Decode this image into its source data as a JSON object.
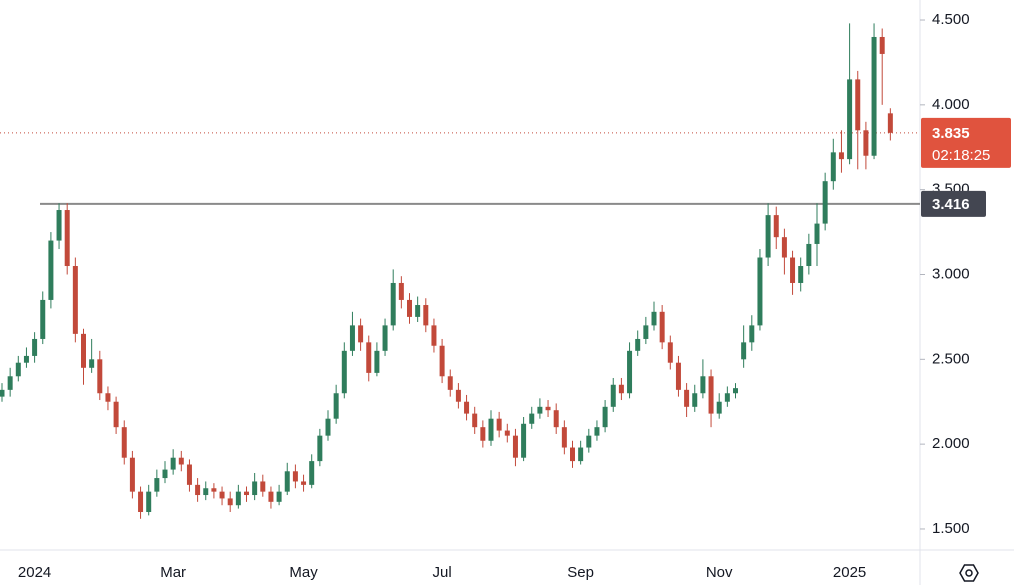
{
  "chart_data": {
    "type": "candlestick",
    "categories": [
      null,
      null,
      null,
      null,
      "2024",
      null,
      null,
      null,
      null,
      null,
      null,
      null,
      null,
      null,
      null,
      null,
      null,
      null,
      null,
      null,
      null,
      "Mar",
      null,
      null,
      null,
      null,
      null,
      null,
      null,
      null,
      null,
      null,
      null,
      null,
      null,
      null,
      null,
      "May",
      null,
      null,
      null,
      null,
      null,
      null,
      null,
      null,
      null,
      null,
      null,
      null,
      null,
      null,
      null,
      null,
      "Jul",
      null,
      null,
      null,
      null,
      null,
      null,
      null,
      null,
      null,
      null,
      null,
      null,
      null,
      null,
      null,
      null,
      "Sep",
      null,
      null,
      null,
      null,
      null,
      null,
      null,
      null,
      null,
      null,
      null,
      null,
      null,
      null,
      null,
      null,
      "Nov",
      null,
      null,
      null,
      null,
      null,
      null,
      null,
      null,
      null,
      null,
      null,
      null,
      null,
      null,
      null,
      "2025",
      null,
      null,
      null,
      null,
      null
    ],
    "open": [
      2.28,
      2.32,
      2.4,
      2.48,
      2.52,
      2.62,
      2.85,
      3.2,
      3.38,
      3.05,
      2.65,
      2.45,
      2.5,
      2.3,
      2.25,
      2.1,
      1.92,
      1.72,
      1.6,
      1.72,
      1.8,
      1.85,
      1.92,
      1.88,
      1.76,
      1.7,
      1.74,
      1.72,
      1.68,
      1.64,
      1.72,
      1.7,
      1.78,
      1.72,
      1.66,
      1.72,
      1.84,
      1.78,
      1.76,
      1.9,
      2.05,
      2.15,
      2.3,
      2.55,
      2.7,
      2.6,
      2.42,
      2.55,
      2.7,
      2.95,
      2.85,
      2.75,
      2.82,
      2.7,
      2.58,
      2.4,
      2.32,
      2.25,
      2.18,
      2.1,
      2.02,
      2.15,
      2.08,
      2.05,
      1.92,
      2.12,
      2.18,
      2.22,
      2.2,
      2.1,
      1.98,
      1.9,
      1.98,
      2.05,
      2.1,
      2.22,
      2.35,
      2.3,
      2.55,
      2.62,
      2.7,
      2.78,
      2.6,
      2.48,
      2.32,
      2.22,
      2.3,
      2.4,
      2.18,
      2.25,
      2.3,
      2.5,
      2.6,
      2.7,
      3.1,
      3.35,
      3.22,
      3.1,
      2.95,
      3.05,
      3.18,
      3.3,
      3.55,
      3.72,
      3.68,
      4.15,
      3.85,
      3.7,
      4.4,
      3.95
    ],
    "high": [
      2.36,
      2.45,
      2.52,
      2.57,
      2.66,
      2.9,
      3.25,
      3.42,
      3.42,
      3.1,
      2.68,
      2.62,
      2.55,
      2.34,
      2.28,
      2.14,
      1.96,
      1.75,
      1.76,
      1.85,
      1.9,
      1.97,
      1.96,
      1.91,
      1.8,
      1.78,
      1.77,
      1.75,
      1.72,
      1.76,
      1.75,
      1.83,
      1.82,
      1.75,
      1.76,
      1.89,
      1.88,
      1.82,
      1.94,
      2.09,
      2.2,
      2.35,
      2.6,
      2.78,
      2.74,
      2.64,
      2.6,
      2.74,
      3.03,
      2.99,
      2.89,
      2.87,
      2.86,
      2.74,
      2.62,
      2.44,
      2.36,
      2.29,
      2.22,
      2.14,
      2.2,
      2.19,
      2.12,
      2.09,
      2.16,
      2.22,
      2.27,
      2.26,
      2.24,
      2.14,
      2.02,
      2.02,
      2.09,
      2.14,
      2.26,
      2.39,
      2.39,
      2.6,
      2.67,
      2.75,
      2.84,
      2.82,
      2.64,
      2.52,
      2.36,
      2.35,
      2.5,
      2.44,
      2.3,
      2.34,
      2.36,
      2.7,
      2.76,
      3.15,
      3.42,
      3.4,
      3.27,
      3.14,
      3.1,
      3.24,
      3.42,
      3.6,
      3.8,
      3.85,
      4.48,
      4.2,
      3.9,
      4.48,
      4.45,
      3.98
    ],
    "low": [
      2.25,
      2.28,
      2.37,
      2.45,
      2.48,
      2.59,
      2.8,
      3.15,
      3.0,
      2.6,
      2.35,
      2.42,
      2.26,
      2.2,
      2.06,
      1.88,
      1.68,
      1.56,
      1.58,
      1.69,
      1.77,
      1.82,
      1.84,
      1.72,
      1.66,
      1.67,
      1.68,
      1.64,
      1.6,
      1.62,
      1.66,
      1.67,
      1.69,
      1.62,
      1.64,
      1.7,
      1.74,
      1.72,
      1.74,
      1.87,
      2.02,
      2.12,
      2.27,
      2.52,
      2.55,
      2.37,
      2.4,
      2.52,
      2.67,
      2.8,
      2.71,
      2.72,
      2.66,
      2.54,
      2.36,
      2.28,
      2.21,
      2.14,
      2.06,
      1.98,
      1.99,
      2.04,
      2.01,
      1.87,
      1.9,
      2.09,
      2.15,
      2.16,
      2.06,
      1.94,
      1.86,
      1.88,
      1.95,
      2.02,
      2.07,
      2.19,
      2.26,
      2.27,
      2.52,
      2.59,
      2.67,
      2.56,
      2.44,
      2.28,
      2.16,
      2.19,
      2.27,
      2.1,
      2.15,
      2.22,
      2.27,
      2.45,
      2.55,
      2.67,
      3.05,
      3.15,
      3.0,
      2.88,
      2.9,
      3.0,
      3.05,
      3.26,
      3.5,
      3.6,
      3.65,
      3.62,
      3.62,
      3.68,
      4.0,
      3.79
    ],
    "close": [
      2.32,
      2.4,
      2.48,
      2.52,
      2.62,
      2.85,
      3.2,
      3.38,
      3.05,
      2.65,
      2.45,
      2.5,
      2.3,
      2.25,
      2.1,
      1.92,
      1.72,
      1.6,
      1.72,
      1.8,
      1.85,
      1.92,
      1.88,
      1.76,
      1.7,
      1.74,
      1.72,
      1.68,
      1.64,
      1.72,
      1.7,
      1.78,
      1.72,
      1.66,
      1.72,
      1.84,
      1.78,
      1.76,
      1.9,
      2.05,
      2.15,
      2.3,
      2.55,
      2.7,
      2.6,
      2.42,
      2.55,
      2.7,
      2.95,
      2.85,
      2.75,
      2.82,
      2.7,
      2.58,
      2.4,
      2.32,
      2.25,
      2.18,
      2.1,
      2.02,
      2.15,
      2.08,
      2.05,
      1.92,
      2.12,
      2.18,
      2.22,
      2.2,
      2.1,
      1.98,
      1.9,
      1.98,
      2.05,
      2.1,
      2.22,
      2.35,
      2.3,
      2.55,
      2.62,
      2.7,
      2.78,
      2.6,
      2.48,
      2.32,
      2.22,
      2.3,
      2.4,
      2.18,
      2.25,
      2.3,
      2.33,
      2.6,
      2.7,
      3.1,
      3.35,
      3.22,
      3.1,
      2.95,
      3.05,
      3.18,
      3.3,
      3.55,
      3.72,
      3.68,
      4.15,
      3.85,
      3.7,
      4.4,
      4.3,
      3.835
    ],
    "up_color": "#2f7d5c",
    "down_color": "#c2493a",
    "ylim": [
      1.376,
      4.618
    ],
    "yticks": [
      {
        "value": 1.5,
        "label": "1.500"
      },
      {
        "value": 2,
        "label": "2.000"
      },
      {
        "value": 2.5,
        "label": "2.500"
      },
      {
        "value": 3,
        "label": "3.000"
      },
      {
        "value": 3.5,
        "label": "3.500"
      },
      {
        "value": 4,
        "label": "4.000"
      },
      {
        "value": 4.5,
        "label": "4.500"
      }
    ],
    "level_line": 3.416,
    "price_line": {
      "value": 3.835,
      "timer": "02:18:25"
    }
  }
}
